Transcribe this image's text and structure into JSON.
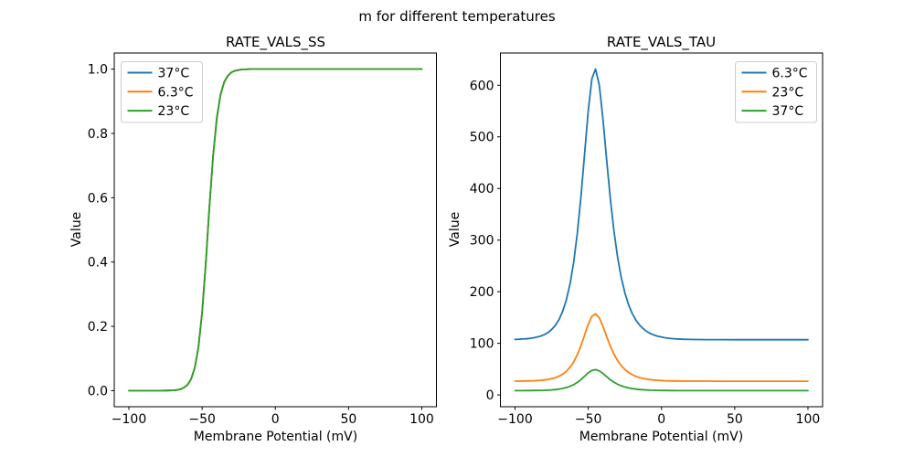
{
  "figure": {
    "suptitle": "m for different temperatures"
  },
  "chart_data": [
    {
      "type": "line",
      "title": "RATE_VALS_SS",
      "xlabel": "Membrane Potential (mV)",
      "ylabel": "Value",
      "xlim": [
        -110,
        110
      ],
      "ylim": [
        -0.05,
        1.05
      ],
      "xticks": [
        -100,
        -50,
        0,
        50,
        100
      ],
      "xtick_labels": [
        "−100",
        "−50",
        "0",
        "50",
        "100"
      ],
      "yticks": [
        0,
        0.2,
        0.4,
        0.6,
        0.8,
        1.0
      ],
      "ytick_labels": [
        "0.0",
        "0.2",
        "0.4",
        "0.6",
        "0.8",
        "1.0"
      ],
      "grid": false,
      "legend_position": "upper left",
      "x": [
        -100,
        -97.5,
        -95,
        -92.5,
        -90,
        -87.5,
        -85,
        -82.5,
        -80,
        -77.5,
        -75,
        -72.5,
        -70,
        -67.5,
        -65,
        -62.5,
        -60,
        -57.5,
        -55,
        -52.5,
        -50,
        -47.5,
        -45,
        -42.5,
        -40,
        -37.5,
        -35,
        -32.5,
        -30,
        -27.5,
        -25,
        -22.5,
        -20,
        -17.5,
        -15,
        -12.5,
        -10,
        -7.5,
        -5,
        -2.5,
        0,
        2.5,
        5,
        7.5,
        10,
        15,
        20,
        25,
        30,
        40,
        50,
        60,
        70,
        80,
        90,
        100
      ],
      "series": [
        {
          "name": "37°C",
          "color": "#1f77b4",
          "values": [
            0,
            0,
            0,
            0,
            0,
            0,
            0,
            0,
            0.0001,
            0.0001,
            0.0003,
            0.0005,
            0.001,
            0.002,
            0.004,
            0.009,
            0.018,
            0.036,
            0.071,
            0.135,
            0.242,
            0.394,
            0.571,
            0.731,
            0.847,
            0.919,
            0.959,
            0.979,
            0.99,
            0.995,
            0.997,
            0.999,
            0.999,
            1,
            1,
            1,
            1,
            1,
            1,
            1,
            1,
            1,
            1,
            1,
            1,
            1,
            1,
            1,
            1,
            1,
            1,
            1,
            1,
            1,
            1,
            1
          ]
        },
        {
          "name": "6.3°C",
          "color": "#ff7f0e",
          "values": [
            0,
            0,
            0,
            0,
            0,
            0,
            0,
            0,
            0.0001,
            0.0001,
            0.0003,
            0.0005,
            0.001,
            0.002,
            0.004,
            0.009,
            0.018,
            0.036,
            0.071,
            0.135,
            0.242,
            0.394,
            0.571,
            0.731,
            0.847,
            0.919,
            0.959,
            0.979,
            0.99,
            0.995,
            0.997,
            0.999,
            0.999,
            1,
            1,
            1,
            1,
            1,
            1,
            1,
            1,
            1,
            1,
            1,
            1,
            1,
            1,
            1,
            1,
            1,
            1,
            1,
            1,
            1,
            1,
            1
          ]
        },
        {
          "name": "23°C",
          "color": "#2ca02c",
          "values": [
            0,
            0,
            0,
            0,
            0,
            0,
            0,
            0,
            0.0001,
            0.0001,
            0.0003,
            0.0005,
            0.001,
            0.002,
            0.004,
            0.009,
            0.018,
            0.036,
            0.071,
            0.135,
            0.242,
            0.394,
            0.571,
            0.731,
            0.847,
            0.919,
            0.959,
            0.979,
            0.99,
            0.995,
            0.997,
            0.999,
            0.999,
            1,
            1,
            1,
            1,
            1,
            1,
            1,
            1,
            1,
            1,
            1,
            1,
            1,
            1,
            1,
            1,
            1,
            1,
            1,
            1,
            1,
            1,
            1
          ]
        }
      ]
    },
    {
      "type": "line",
      "title": "RATE_VALS_TAU",
      "xlabel": "Membrane Potential (mV)",
      "ylabel": "Value",
      "xlim": [
        -110,
        110
      ],
      "ylim": [
        -22.85,
        662.45
      ],
      "xticks": [
        -100,
        -50,
        0,
        50,
        100
      ],
      "xtick_labels": [
        "−100",
        "−50",
        "0",
        "50",
        "100"
      ],
      "yticks": [
        0,
        100,
        200,
        300,
        400,
        500,
        600
      ],
      "ytick_labels": [
        "0",
        "100",
        "200",
        "300",
        "400",
        "500",
        "600"
      ],
      "grid": false,
      "legend_position": "upper right",
      "x": [
        -100,
        -97.5,
        -95,
        -92.5,
        -90,
        -87.5,
        -85,
        -82.5,
        -80,
        -77.5,
        -75,
        -72.5,
        -70,
        -67.5,
        -65,
        -62.5,
        -60,
        -57.5,
        -55,
        -52.5,
        -50,
        -47.5,
        -45,
        -42.5,
        -40,
        -37.5,
        -35,
        -32.5,
        -30,
        -27.5,
        -25,
        -22.5,
        -20,
        -17.5,
        -15,
        -12.5,
        -10,
        -7.5,
        -5,
        -2.5,
        0,
        2.5,
        5,
        7.5,
        10,
        15,
        20,
        25,
        30,
        40,
        50,
        60,
        70,
        80,
        90,
        100
      ],
      "series": [
        {
          "name": "6.3°C",
          "color": "#1f77b4",
          "values": [
            107.6,
            107.9,
            108.3,
            108.8,
            109.5,
            110.6,
            112,
            114,
            116.9,
            121,
            126.7,
            134.7,
            146,
            161.8,
            183.9,
            214.5,
            256.3,
            312.5,
            383.6,
            467,
            550.6,
            612.8,
            631.3,
            600.2,
            534,
            455.9,
            381.2,
            317.7,
            267,
            227.6,
            197.6,
            174.8,
            157.8,
            145,
            135.4,
            128.3,
            122.9,
            118.9,
            115.9,
            113.7,
            112,
            110.7,
            109.8,
            109.1,
            108.6,
            107.9,
            107.5,
            107.3,
            107.2,
            107.1,
            107,
            107,
            107,
            107,
            107,
            107
          ]
        },
        {
          "name": "23°C",
          "color": "#ff7f0e",
          "values": [
            26.8,
            26.8,
            26.9,
            27.1,
            27.2,
            27.5,
            27.9,
            28.4,
            29.1,
            30.1,
            31.5,
            33.5,
            36.3,
            40.2,
            45.7,
            53.4,
            63.8,
            77.7,
            95.4,
            116.2,
            137,
            152.4,
            157,
            149.3,
            132.8,
            113.4,
            94.8,
            79,
            66.4,
            56.6,
            49.2,
            43.5,
            39.3,
            36.1,
            33.7,
            31.9,
            30.6,
            29.6,
            28.8,
            28.3,
            27.9,
            27.5,
            27.3,
            27.1,
            27,
            26.8,
            26.7,
            26.7,
            26.7,
            26.6,
            26.6,
            26.6,
            26.6,
            26.6,
            26.6,
            26.6
          ]
        },
        {
          "name": "37°C",
          "color": "#2ca02c",
          "values": [
            8.4,
            8.4,
            8.4,
            8.5,
            8.5,
            8.6,
            8.7,
            8.9,
            9.1,
            9.4,
            9.8,
            10.5,
            11.3,
            12.6,
            14.3,
            16.7,
            19.9,
            24.3,
            29.8,
            36.3,
            42.8,
            47.6,
            49.1,
            46.6,
            41.5,
            35.4,
            29.6,
            24.7,
            20.7,
            17.7,
            15.4,
            13.6,
            12.3,
            11.3,
            10.5,
            10,
            9.5,
            9.2,
            9,
            8.8,
            8.7,
            8.6,
            8.5,
            8.5,
            8.4,
            8.4,
            8.4,
            8.3,
            8.3,
            8.3,
            8.3,
            8.3,
            8.3,
            8.3,
            8.3,
            8.3
          ]
        }
      ]
    }
  ]
}
